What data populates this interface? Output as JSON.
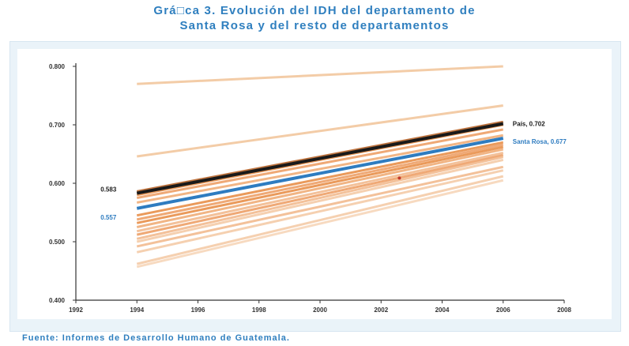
{
  "title": {
    "line1": "Grá□ca 3. Evolución del IDH del departamento de",
    "line2": "Santa Rosa y del resto de departamentos"
  },
  "source": "Fuente: Informes de Desarrollo Humano de Guatemala.",
  "chart_data": {
    "type": "line",
    "title": "Grá□ca 3. Evolución del IDH del departamento de Santa Rosa y del resto de departamentos",
    "xlabel": "",
    "ylabel": "",
    "xlim": [
      1992,
      2008
    ],
    "ylim": [
      0.4,
      0.8
    ],
    "x_ticks": [
      "1992",
      "1994",
      "1996",
      "1998",
      "2000",
      "2002",
      "2004",
      "2006",
      "2008"
    ],
    "y_ticks": [
      "0.400",
      "0.500",
      "0.600",
      "0.700",
      "0.800"
    ],
    "grid": false,
    "x": [
      1994,
      2006
    ],
    "highlight_series": [
      {
        "name": "País",
        "values": [
          0.583,
          0.702
        ],
        "color": "#1a1a1a",
        "label_start": "0.583",
        "label_end": "País, 0.702"
      },
      {
        "name": "Santa Rosa",
        "values": [
          0.557,
          0.677
        ],
        "color": "#2e7cc0",
        "label_start": "0.557",
        "label_end": "Santa Rosa, 0.677"
      }
    ],
    "other_departments": [
      {
        "values": [
          0.77,
          0.8
        ],
        "color": "#f2c79e"
      },
      {
        "values": [
          0.646,
          0.733
        ],
        "color": "#f2c79e"
      },
      {
        "values": [
          0.586,
          0.705
        ],
        "color": "#b8642a"
      },
      {
        "values": [
          0.58,
          0.7
        ],
        "color": "#e8904a"
      },
      {
        "values": [
          0.575,
          0.692
        ],
        "color": "#eea068"
      },
      {
        "values": [
          0.567,
          0.682
        ],
        "color": "#f0ad78"
      },
      {
        "values": [
          0.545,
          0.67
        ],
        "color": "#e8904a"
      },
      {
        "values": [
          0.538,
          0.666
        ],
        "color": "#eea068"
      },
      {
        "values": [
          0.532,
          0.662
        ],
        "color": "#e8904a"
      },
      {
        "values": [
          0.525,
          0.658
        ],
        "color": "#f0ad78"
      },
      {
        "values": [
          0.518,
          0.652
        ],
        "color": "#f2bb90"
      },
      {
        "values": [
          0.512,
          0.648
        ],
        "color": "#eea068"
      },
      {
        "values": [
          0.505,
          0.645
        ],
        "color": "#f2bb90"
      },
      {
        "values": [
          0.5,
          0.64
        ],
        "color": "#f5cba8"
      },
      {
        "values": [
          0.492,
          0.628
        ],
        "color": "#f2bb90"
      },
      {
        "values": [
          0.482,
          0.622
        ],
        "color": "#f5cba8"
      },
      {
        "values": [
          0.462,
          0.612
        ],
        "color": "#f5cba8"
      },
      {
        "values": [
          0.457,
          0.605
        ],
        "color": "#f7d6ba"
      }
    ],
    "marker": {
      "x": 2002.6,
      "y": 0.609,
      "color": "#c0392b"
    }
  }
}
